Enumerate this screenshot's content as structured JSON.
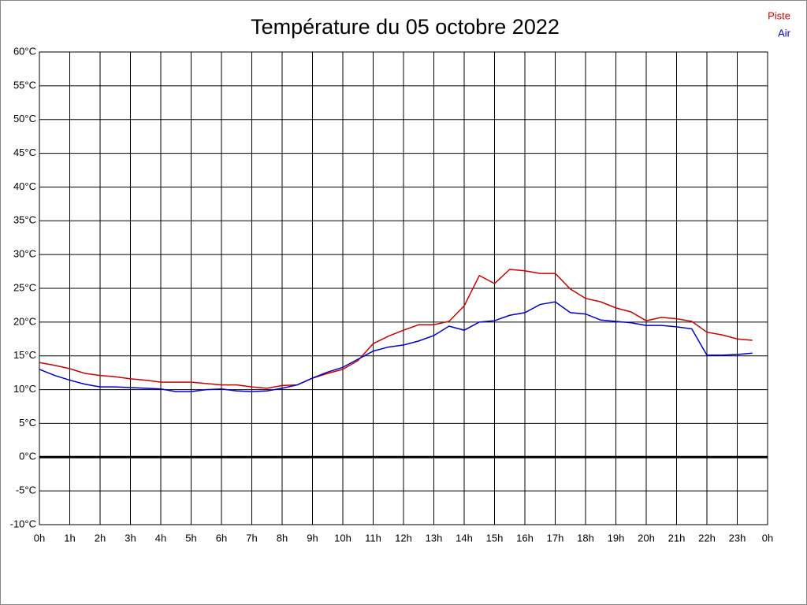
{
  "chart_data": {
    "type": "line",
    "title": "Température du 05 octobre 2022",
    "x": [
      0,
      0.5,
      1,
      1.5,
      2,
      2.5,
      3,
      3.5,
      4,
      4.5,
      5,
      5.5,
      6,
      6.5,
      7,
      7.5,
      8,
      8.5,
      9,
      9.5,
      10,
      10.5,
      11,
      11.5,
      12,
      12.5,
      13,
      13.5,
      14,
      14.5,
      15,
      15.5,
      16,
      16.5,
      17,
      17.5,
      18,
      18.5,
      19,
      19.5,
      20,
      20.5,
      21,
      21.5,
      22,
      22.5,
      23,
      23.5
    ],
    "series": [
      {
        "name": "Piste",
        "color": "#cc0000",
        "values": [
          14.0,
          13.6,
          13.1,
          12.4,
          12.1,
          11.9,
          11.6,
          11.4,
          11.1,
          11.1,
          11.1,
          10.9,
          10.7,
          10.7,
          10.4,
          10.2,
          10.6,
          10.7,
          11.7,
          12.4,
          13.0,
          14.3,
          16.8,
          17.9,
          18.8,
          19.6,
          19.6,
          20.1,
          22.4,
          26.9,
          25.7,
          27.8,
          27.6,
          27.2,
          27.2,
          24.9,
          23.5,
          23.0,
          22.1,
          21.5,
          20.2,
          20.7,
          20.5,
          20.1,
          18.5,
          18.1,
          17.5,
          17.3
        ]
      },
      {
        "name": "Air",
        "color": "#0000cc",
        "values": [
          13.0,
          12.1,
          11.4,
          10.8,
          10.4,
          10.4,
          10.3,
          10.2,
          10.1,
          9.7,
          9.7,
          10.0,
          10.1,
          9.8,
          9.7,
          9.8,
          10.2,
          10.7,
          11.7,
          12.6,
          13.3,
          14.5,
          15.7,
          16.3,
          16.6,
          17.2,
          18.0,
          19.4,
          18.8,
          20.0,
          20.2,
          21.0,
          21.4,
          22.6,
          23.0,
          21.4,
          21.2,
          20.3,
          20.1,
          19.9,
          19.5,
          19.5,
          19.3,
          19.0,
          15.1,
          15.1,
          15.2,
          15.4
        ]
      }
    ],
    "xlim": [
      0,
      24
    ],
    "xticks": [
      {
        "value": 0,
        "label": "0h"
      },
      {
        "value": 1,
        "label": "1h"
      },
      {
        "value": 2,
        "label": "2h"
      },
      {
        "value": 3,
        "label": "3h"
      },
      {
        "value": 4,
        "label": "4h"
      },
      {
        "value": 5,
        "label": "5h"
      },
      {
        "value": 6,
        "label": "6h"
      },
      {
        "value": 7,
        "label": "7h"
      },
      {
        "value": 8,
        "label": "8h"
      },
      {
        "value": 9,
        "label": "9h"
      },
      {
        "value": 10,
        "label": "10h"
      },
      {
        "value": 11,
        "label": "11h"
      },
      {
        "value": 12,
        "label": "12h"
      },
      {
        "value": 13,
        "label": "13h"
      },
      {
        "value": 14,
        "label": "14h"
      },
      {
        "value": 15,
        "label": "15h"
      },
      {
        "value": 16,
        "label": "16h"
      },
      {
        "value": 17,
        "label": "17h"
      },
      {
        "value": 18,
        "label": "18h"
      },
      {
        "value": 19,
        "label": "19h"
      },
      {
        "value": 20,
        "label": "20h"
      },
      {
        "value": 21,
        "label": "21h"
      },
      {
        "value": 22,
        "label": "22h"
      },
      {
        "value": 23,
        "label": "23h"
      },
      {
        "value": 24,
        "label": "0h"
      }
    ],
    "ylim": [
      -10,
      60
    ],
    "yticks": [
      {
        "value": -10,
        "label": "-10°C"
      },
      {
        "value": -5,
        "label": "-5°C"
      },
      {
        "value": 0,
        "label": "0°C"
      },
      {
        "value": 5,
        "label": "5°C"
      },
      {
        "value": 10,
        "label": "10°C"
      },
      {
        "value": 15,
        "label": "15°C"
      },
      {
        "value": 20,
        "label": "20°C"
      },
      {
        "value": 25,
        "label": "25°C"
      },
      {
        "value": 30,
        "label": "30°C"
      },
      {
        "value": 35,
        "label": "35°C"
      },
      {
        "value": 40,
        "label": "40°C"
      },
      {
        "value": 45,
        "label": "45°C"
      },
      {
        "value": 50,
        "label": "50°C"
      },
      {
        "value": 55,
        "label": "55°C"
      },
      {
        "value": 60,
        "label": "60°C"
      }
    ],
    "grid": true,
    "legend": "top-right"
  }
}
